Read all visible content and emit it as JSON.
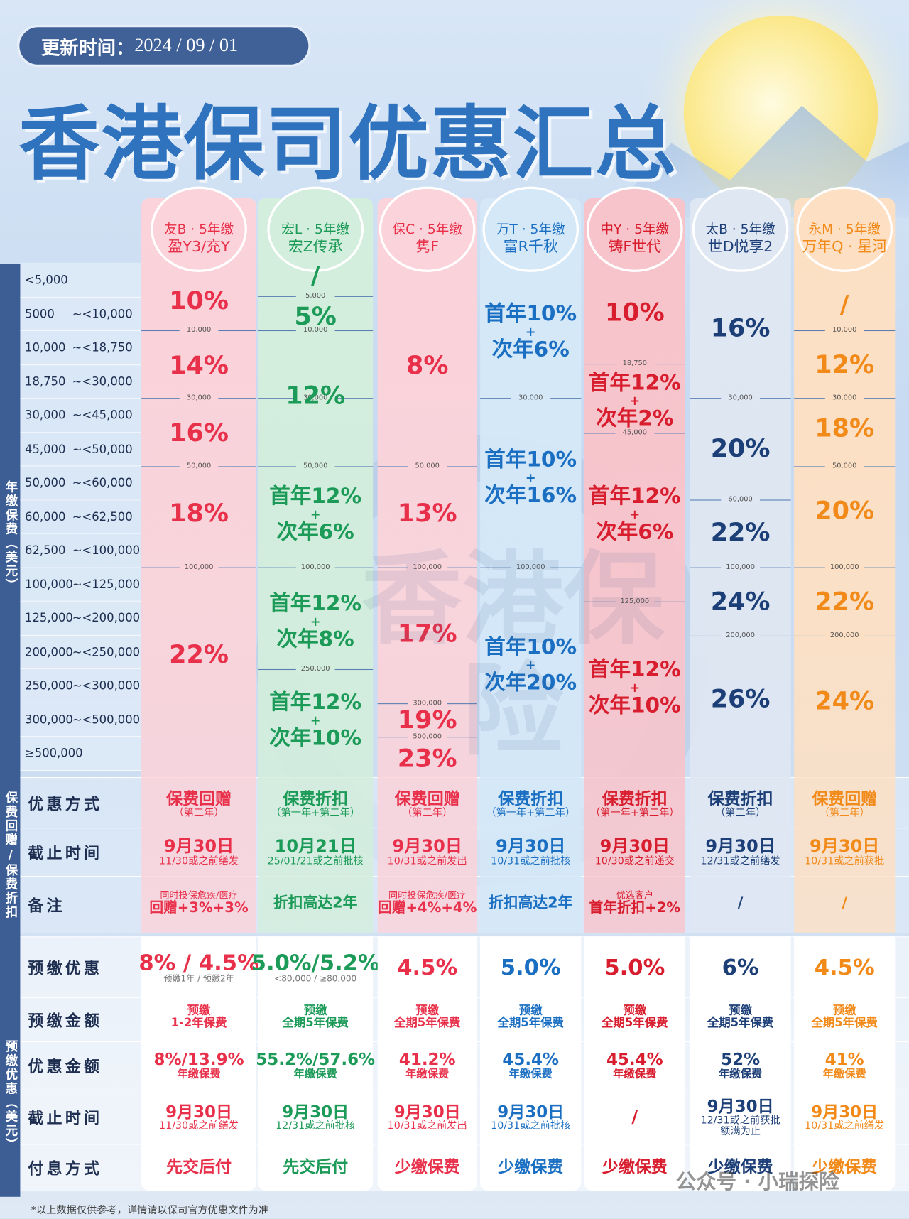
{
  "header": {
    "update_label": "更新时间：",
    "update_date": "2024 / 09 / 01",
    "title": "香港保司优惠汇总"
  },
  "sections": {
    "premium": "年缴保费（美元）",
    "discount": "保费回赠/保费折扣",
    "prepay": "预缴优惠（美元）"
  },
  "range_rows": [
    {
      "low": "<5,000"
    },
    {
      "low": "5000",
      "high": "~<10,000"
    },
    {
      "low": "10,000",
      "high": "~<18,750"
    },
    {
      "low": "18,750",
      "high": "~<30,000"
    },
    {
      "low": "30,000",
      "high": "~<45,000"
    },
    {
      "low": "45,000",
      "high": "~<50,000"
    },
    {
      "low": "50,000",
      "high": "~<60,000"
    },
    {
      "low": "60,000",
      "high": "~<62,500"
    },
    {
      "low": "62,500",
      "high": "~<100,000"
    },
    {
      "low": "100,000",
      "high": "~<125,000"
    },
    {
      "low": "125,000",
      "high": "~<200,000"
    },
    {
      "low": "200,000",
      "high": "~<250,000"
    },
    {
      "low": "250,000",
      "high": "~<300,000"
    },
    {
      "low": "300,000",
      "high": "~<500,000"
    },
    {
      "low": "≥500,000"
    }
  ],
  "row_labels": {
    "method": "优惠方式",
    "deadline": "截止时间",
    "remark": "备注",
    "prepay": "预缴优惠",
    "prepay_amount": "预缴金额",
    "benefit": "优惠金额",
    "prepay_deadline": "截止时间",
    "payment": "付息方式"
  },
  "columns": [
    {
      "brand": "友B · 5年缴",
      "name": "盈Y3/充Y",
      "tiers": [
        [
          "10%"
        ],
        [
          "14%"
        ],
        [
          "16%"
        ],
        [
          "18%"
        ],
        [
          "22%"
        ]
      ],
      "dividers": [
        "10,000",
        "30,000",
        "50,000",
        "100,000"
      ],
      "method": [
        "保费回赠",
        "（第二年）"
      ],
      "deadline": [
        "9月30日",
        "11/30或之前缮发"
      ],
      "remark": [
        "同时投保危疾/医疗",
        "回赠+3%+3%"
      ],
      "prepay": [
        "8% / 4.5%",
        "预缴1年 / 预缴2年"
      ],
      "prepay_amount": [
        "预缴",
        "1-2年保费"
      ],
      "benefit": [
        "8%/13.9%",
        "年缴保费"
      ],
      "prepay_deadline": [
        "9月30日",
        "11/30或之前缮发"
      ],
      "payment": "先交后付"
    },
    {
      "brand": "宏L · 5年缴",
      "name": "宏Z传承",
      "tiers": [
        [
          "/"
        ],
        [
          "5%"
        ],
        [
          "12%"
        ],
        [
          "首年12%",
          "+",
          "次年6%"
        ],
        [
          "首年12%",
          "+",
          "次年8%"
        ],
        [
          "首年12%",
          "+",
          "次年10%"
        ]
      ],
      "dividers": [
        "5,000",
        "10,000",
        "30,000",
        "50,000",
        "100,000",
        "250,000"
      ],
      "method": [
        "保费折扣",
        "（第一年+第二年）"
      ],
      "deadline": [
        "10月21日",
        "25/01/21或之前批核"
      ],
      "remark": [
        "折扣高达2年"
      ],
      "prepay": [
        "5.0%/5.2%",
        "<80,000 / ≥80,000"
      ],
      "prepay_amount": [
        "预缴",
        "全期5年保费"
      ],
      "benefit": [
        "55.2%/57.6%",
        "年缴保费"
      ],
      "prepay_deadline": [
        "9月30日",
        "12/31或之前批核"
      ],
      "payment": "先交后付"
    },
    {
      "brand": "保C · 5年缴",
      "name": "隽F",
      "tiers": [
        [
          "8%"
        ],
        [
          "13%"
        ],
        [
          "17%"
        ],
        [
          "19%"
        ],
        [
          "23%"
        ]
      ],
      "dividers": [
        "50,000",
        "100,000",
        "300,000",
        "500,000"
      ],
      "method": [
        "保费回赠",
        "（第二年）"
      ],
      "deadline": [
        "9月30日",
        "10/31或之前发出"
      ],
      "remark": [
        "同时投保危疾/医疗",
        "回赠+4%+4%"
      ],
      "prepay": [
        "4.5%"
      ],
      "prepay_amount": [
        "预缴",
        "全期5年保费"
      ],
      "benefit": [
        "41.2%",
        "年缴保费"
      ],
      "prepay_deadline": [
        "9月30日",
        "10/31或之前发出"
      ],
      "payment": "少缴保费"
    },
    {
      "brand": "万T · 5年缴",
      "name": "富R千秋",
      "tiers": [
        [
          "首年10%",
          "+",
          "次年6%"
        ],
        [
          "首年10%",
          "+",
          "次年16%"
        ],
        [
          "首年10%",
          "+",
          "次年20%"
        ]
      ],
      "dividers": [
        "30,000",
        "100,000"
      ],
      "method": [
        "保费折扣",
        "（第一年+第二年）"
      ],
      "deadline": [
        "9月30日",
        "10/31或之前批核"
      ],
      "remark": [
        "折扣高达2年"
      ],
      "prepay": [
        "5.0%"
      ],
      "prepay_amount": [
        "预缴",
        "全期5年保费"
      ],
      "benefit": [
        "45.4%",
        "年缴保费"
      ],
      "prepay_deadline": [
        "9月30日",
        "10/31或之前批核"
      ],
      "payment": "少缴保费"
    },
    {
      "brand": "中Y · 5年缴",
      "name": "铸F世代",
      "tiers": [
        [
          "10%"
        ],
        [
          "首年12%",
          "+",
          "次年2%"
        ],
        [
          "首年12%",
          "+",
          "次年6%"
        ],
        [
          "首年12%",
          "+",
          "次年10%"
        ]
      ],
      "dividers": [
        "18,750",
        "45,000",
        "125,000"
      ],
      "method": [
        "保费折扣",
        "（第一年+第二年）"
      ],
      "deadline": [
        "9月30日",
        "10/30或之前递交"
      ],
      "remark": [
        "优选客户",
        "首年折扣+2%"
      ],
      "prepay": [
        "5.0%"
      ],
      "prepay_amount": [
        "预缴",
        "全期5年保费"
      ],
      "benefit": [
        "45.4%",
        "年缴保费"
      ],
      "prepay_deadline": [
        "/"
      ],
      "payment": "少缴保费"
    },
    {
      "brand": "太B · 5年缴",
      "name": "世D悦享2",
      "tiers": [
        [
          "16%"
        ],
        [
          "20%"
        ],
        [
          "22%"
        ],
        [
          "24%"
        ],
        [
          "26%"
        ]
      ],
      "dividers": [
        "30,000",
        "60,000",
        "100,000",
        "200,000"
      ],
      "method": [
        "保费折扣",
        "（第二年）"
      ],
      "deadline": [
        "9月30日",
        "12/31或之前缮发"
      ],
      "remark": [
        "/"
      ],
      "prepay": [
        "6%"
      ],
      "prepay_amount": [
        "预缴",
        "全期5年保费"
      ],
      "benefit": [
        "52%",
        "年缴保费"
      ],
      "prepay_deadline": [
        "9月30日",
        "12/31或之前获批",
        "额满为止"
      ],
      "payment": "少缴保费"
    },
    {
      "brand": "永M · 5年缴",
      "name": "万年Q · 星河",
      "tiers": [
        [
          "/"
        ],
        [
          "12%"
        ],
        [
          "18%"
        ],
        [
          "20%"
        ],
        [
          "22%"
        ],
        [
          "24%"
        ]
      ],
      "dividers": [
        "10,000",
        "30,000",
        "50,000",
        "100,000",
        "200,000"
      ],
      "method": [
        "保费回赠",
        "（第二年）"
      ],
      "deadline": [
        "9月30日",
        "10/31或之前获批"
      ],
      "remark": [
        "/"
      ],
      "prepay": [
        "4.5%"
      ],
      "prepay_amount": [
        "预缴",
        "全期5年保费"
      ],
      "benefit": [
        "41%",
        "年缴保费"
      ],
      "prepay_deadline": [
        "9月30日",
        "10/31或之前缮发"
      ],
      "payment": "少缴保费"
    }
  ],
  "footer": {
    "note": "*以上数据仅供参考，详情请以保司官方优惠文件为准",
    "watermark": "公众号 · 小瑞探险",
    "logo": "香港保险"
  }
}
